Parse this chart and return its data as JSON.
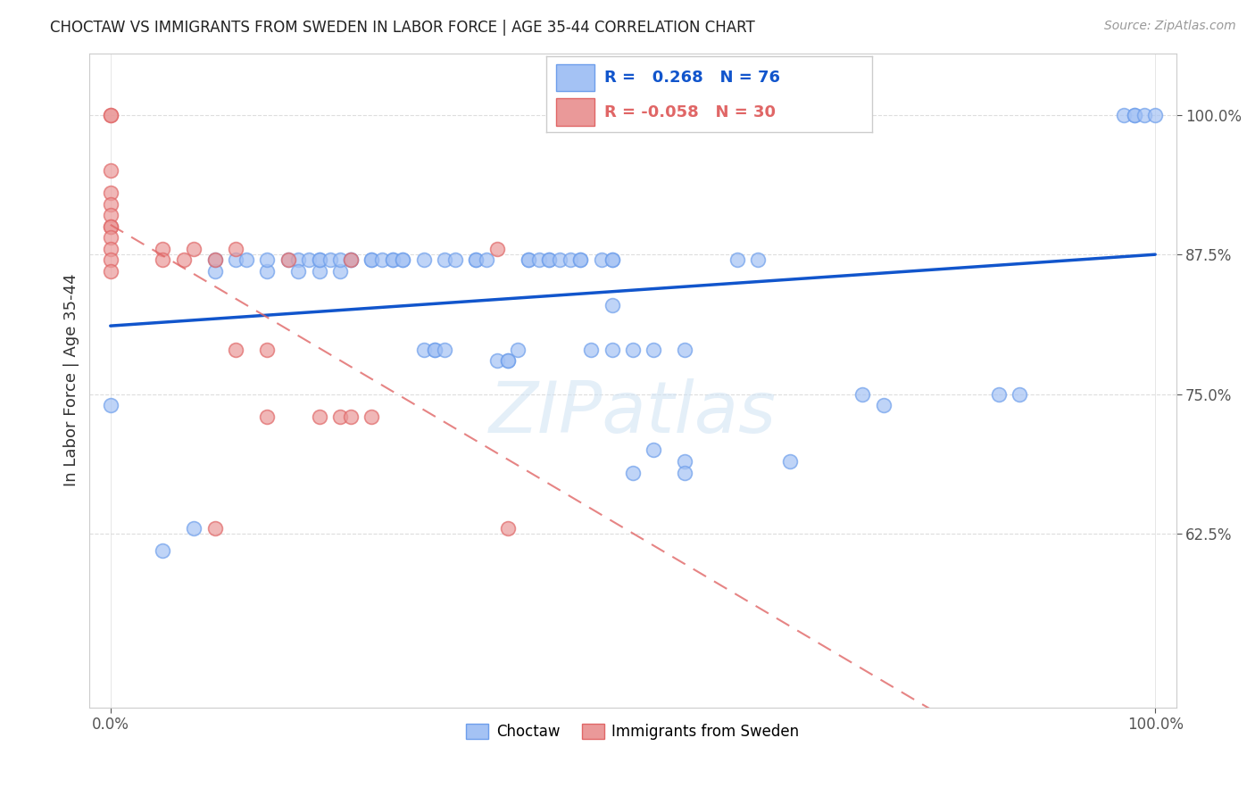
{
  "title": "CHOCTAW VS IMMIGRANTS FROM SWEDEN IN LABOR FORCE | AGE 35-44 CORRELATION CHART",
  "source": "Source: ZipAtlas.com",
  "ylabel": "In Labor Force | Age 35-44",
  "blue_color": "#a4c2f4",
  "blue_edge_color": "#6d9eeb",
  "pink_color": "#ea9999",
  "pink_edge_color": "#e06666",
  "blue_line_color": "#1155cc",
  "pink_line_color": "#e06666",
  "watermark": "ZIPatlas",
  "legend_blue_R": "0.268",
  "legend_blue_N": "76",
  "legend_pink_R": "-0.058",
  "legend_pink_N": "30",
  "blue_x": [
    0.0,
    0.05,
    0.08,
    0.1,
    0.1,
    0.12,
    0.13,
    0.15,
    0.15,
    0.17,
    0.18,
    0.18,
    0.19,
    0.2,
    0.2,
    0.2,
    0.21,
    0.22,
    0.22,
    0.23,
    0.23,
    0.25,
    0.25,
    0.26,
    0.27,
    0.27,
    0.28,
    0.28,
    0.3,
    0.3,
    0.31,
    0.31,
    0.32,
    0.32,
    0.33,
    0.35,
    0.35,
    0.36,
    0.37,
    0.38,
    0.38,
    0.39,
    0.4,
    0.4,
    0.41,
    0.42,
    0.42,
    0.43,
    0.44,
    0.45,
    0.45,
    0.46,
    0.47,
    0.48,
    0.48,
    0.48,
    0.48,
    0.5,
    0.5,
    0.52,
    0.52,
    0.55,
    0.55,
    0.55,
    0.6,
    0.62,
    0.65,
    0.72,
    0.74,
    0.85,
    0.87,
    0.97,
    0.98,
    0.98,
    0.99,
    1.0
  ],
  "blue_y": [
    0.74,
    0.61,
    0.63,
    0.86,
    0.87,
    0.87,
    0.87,
    0.86,
    0.87,
    0.87,
    0.87,
    0.86,
    0.87,
    0.86,
    0.87,
    0.87,
    0.87,
    0.86,
    0.87,
    0.87,
    0.87,
    0.87,
    0.87,
    0.87,
    0.87,
    0.87,
    0.87,
    0.87,
    0.87,
    0.79,
    0.79,
    0.79,
    0.79,
    0.87,
    0.87,
    0.87,
    0.87,
    0.87,
    0.78,
    0.78,
    0.78,
    0.79,
    0.87,
    0.87,
    0.87,
    0.87,
    0.87,
    0.87,
    0.87,
    0.87,
    0.87,
    0.79,
    0.87,
    0.87,
    0.87,
    0.79,
    0.83,
    0.79,
    0.68,
    0.79,
    0.7,
    0.69,
    0.68,
    0.79,
    0.87,
    0.87,
    0.69,
    0.75,
    0.74,
    0.75,
    0.75,
    1.0,
    1.0,
    1.0,
    1.0,
    1.0
  ],
  "pink_x": [
    0.0,
    0.0,
    0.0,
    0.0,
    0.0,
    0.0,
    0.0,
    0.0,
    0.0,
    0.0,
    0.0,
    0.0,
    0.05,
    0.05,
    0.07,
    0.08,
    0.1,
    0.1,
    0.12,
    0.12,
    0.15,
    0.15,
    0.17,
    0.2,
    0.22,
    0.23,
    0.23,
    0.25,
    0.37,
    0.38
  ],
  "pink_y": [
    1.0,
    1.0,
    0.95,
    0.93,
    0.92,
    0.91,
    0.9,
    0.9,
    0.89,
    0.88,
    0.87,
    0.86,
    0.88,
    0.87,
    0.87,
    0.88,
    0.87,
    0.63,
    0.88,
    0.79,
    0.79,
    0.73,
    0.87,
    0.73,
    0.73,
    0.87,
    0.73,
    0.73,
    0.88,
    0.63
  ],
  "xlim": [
    -0.02,
    1.02
  ],
  "ylim_min": 0.47,
  "ylim_max": 1.055,
  "yticks": [
    0.625,
    0.75,
    0.875,
    1.0
  ],
  "ytick_labels": [
    "62.5%",
    "75.0%",
    "87.5%",
    "100.0%"
  ]
}
